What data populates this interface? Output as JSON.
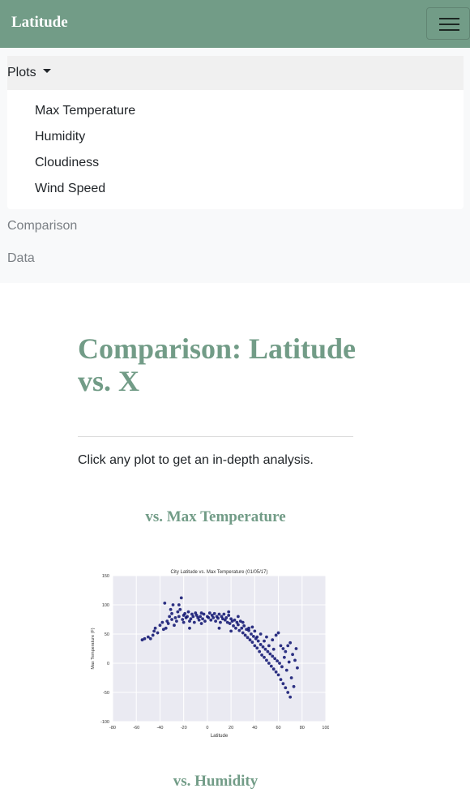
{
  "navbar": {
    "brand": "Latitude"
  },
  "menu": {
    "plots_label": "Plots",
    "dropdown_items": [
      "Max Temperature",
      "Humidity",
      "Cloudiness",
      "Wind Speed"
    ],
    "links": [
      "Comparison",
      "Data"
    ]
  },
  "main": {
    "title": "Comparison: Latitude vs. X",
    "lead": "Click any plot to get an in-depth analysis.",
    "plots": [
      {
        "heading": "vs. Max Temperature"
      },
      {
        "heading": "vs. Humidity"
      }
    ]
  },
  "colors": {
    "accent": "#729c87",
    "point": "#0a0f6e",
    "plot_bg": "#eaeaf2"
  },
  "chart_data": {
    "type": "scatter",
    "title": "City Latitude vs. Max Temperature (01/05/17)",
    "xlabel": "Latitude",
    "ylabel": "Max Temperature (F)",
    "xlim": [
      -80,
      100
    ],
    "ylim": [
      -100,
      150
    ],
    "xticks": [
      -80,
      -60,
      -40,
      -20,
      0,
      20,
      40,
      60,
      80,
      100
    ],
    "yticks": [
      -100,
      -50,
      0,
      50,
      100,
      150
    ],
    "grid": true,
    "points": [
      [
        -55,
        40
      ],
      [
        -53,
        42
      ],
      [
        -50,
        45
      ],
      [
        -46,
        48
      ],
      [
        -45,
        55
      ],
      [
        -44,
        60
      ],
      [
        -42,
        52
      ],
      [
        -40,
        65
      ],
      [
        -38,
        70
      ],
      [
        -36,
        103
      ],
      [
        -35,
        60
      ],
      [
        -34,
        72
      ],
      [
        -33,
        68
      ],
      [
        -32,
        80
      ],
      [
        -30,
        75
      ],
      [
        -30,
        85
      ],
      [
        -29,
        100
      ],
      [
        -28,
        65
      ],
      [
        -27,
        78
      ],
      [
        -26,
        72
      ],
      [
        -25,
        88
      ],
      [
        -24,
        80
      ],
      [
        -23,
        92
      ],
      [
        -22,
        112
      ],
      [
        -21,
        75
      ],
      [
        -20,
        70
      ],
      [
        -20,
        82
      ],
      [
        -19,
        85
      ],
      [
        -18,
        78
      ],
      [
        -17,
        80
      ],
      [
        -16,
        88
      ],
      [
        -15,
        72
      ],
      [
        -14,
        76
      ],
      [
        -13,
        84
      ],
      [
        -12,
        80
      ],
      [
        -11,
        70
      ],
      [
        -10,
        86
      ],
      [
        -9,
        82
      ],
      [
        -8,
        78
      ],
      [
        -7,
        74
      ],
      [
        -6,
        80
      ],
      [
        -5,
        86
      ],
      [
        -4,
        76
      ],
      [
        -3,
        84
      ],
      [
        -2,
        72
      ],
      [
        0,
        80
      ],
      [
        1,
        78
      ],
      [
        2,
        86
      ],
      [
        3,
        74
      ],
      [
        4,
        82
      ],
      [
        5,
        78
      ],
      [
        6,
        85
      ],
      [
        7,
        72
      ],
      [
        8,
        80
      ],
      [
        9,
        77
      ],
      [
        10,
        84
      ],
      [
        11,
        70
      ],
      [
        12,
        80
      ],
      [
        13,
        76
      ],
      [
        14,
        84
      ],
      [
        15,
        74
      ],
      [
        16,
        78
      ],
      [
        17,
        70
      ],
      [
        18,
        82
      ],
      [
        19,
        68
      ],
      [
        20,
        76
      ],
      [
        21,
        72
      ],
      [
        22,
        64
      ],
      [
        23,
        74
      ],
      [
        24,
        60
      ],
      [
        25,
        70
      ],
      [
        26,
        66
      ],
      [
        27,
        56
      ],
      [
        28,
        72
      ],
      [
        29,
        60
      ],
      [
        30,
        52
      ],
      [
        31,
        64
      ],
      [
        32,
        48
      ],
      [
        33,
        58
      ],
      [
        34,
        44
      ],
      [
        35,
        56
      ],
      [
        36,
        40
      ],
      [
        37,
        50
      ],
      [
        38,
        36
      ],
      [
        39,
        46
      ],
      [
        40,
        30
      ],
      [
        41,
        42
      ],
      [
        42,
        26
      ],
      [
        43,
        38
      ],
      [
        44,
        20
      ],
      [
        45,
        32
      ],
      [
        46,
        14
      ],
      [
        47,
        28
      ],
      [
        48,
        10
      ],
      [
        49,
        24
      ],
      [
        50,
        5
      ],
      [
        51,
        20
      ],
      [
        52,
        0
      ],
      [
        53,
        16
      ],
      [
        54,
        -5
      ],
      [
        55,
        12
      ],
      [
        56,
        -10
      ],
      [
        57,
        8
      ],
      [
        58,
        -15
      ],
      [
        59,
        4
      ],
      [
        60,
        -20
      ],
      [
        61,
        0
      ],
      [
        62,
        -28
      ],
      [
        63,
        -6
      ],
      [
        64,
        -35
      ],
      [
        65,
        10
      ],
      [
        66,
        -42
      ],
      [
        67,
        -12
      ],
      [
        68,
        -50
      ],
      [
        69,
        2
      ],
      [
        70,
        -58
      ],
      [
        71,
        -25
      ],
      [
        72,
        15
      ],
      [
        73,
        -40
      ],
      [
        74,
        5
      ],
      [
        75,
        25
      ],
      [
        76,
        -8
      ],
      [
        58,
        48
      ],
      [
        60,
        52
      ],
      [
        62,
        30
      ],
      [
        55,
        40
      ],
      [
        50,
        45
      ],
      [
        45,
        50
      ],
      [
        40,
        55
      ],
      [
        35,
        60
      ],
      [
        -48,
        42
      ],
      [
        -37,
        58
      ],
      [
        -31,
        92
      ],
      [
        -24,
        100
      ],
      [
        10,
        60
      ],
      [
        20,
        55
      ],
      [
        -15,
        60
      ],
      [
        -5,
        68
      ],
      [
        30,
        70
      ],
      [
        66,
        20
      ],
      [
        68,
        30
      ],
      [
        70,
        35
      ],
      [
        64,
        25
      ],
      [
        56,
        24
      ],
      [
        52,
        30
      ],
      [
        48,
        38
      ],
      [
        42,
        45
      ],
      [
        38,
        62
      ],
      [
        26,
        80
      ],
      [
        18,
        88
      ]
    ]
  }
}
